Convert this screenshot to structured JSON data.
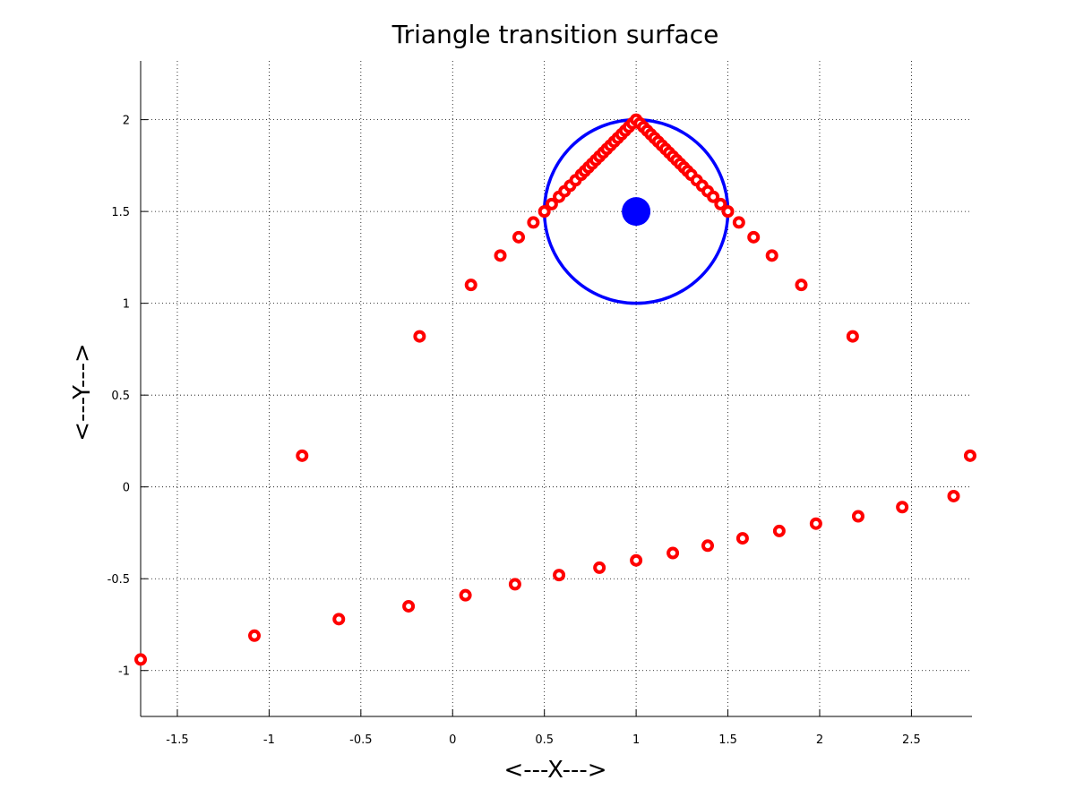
{
  "chart_data": {
    "type": "scatter",
    "title": "Triangle transition surface",
    "xlabel": "<---X--->",
    "ylabel": "<---Y--->",
    "xlim": [
      -1.7,
      2.83
    ],
    "ylim": [
      -1.25,
      2.32
    ],
    "xticks": [
      -1.5,
      -1,
      -0.5,
      0,
      0.5,
      1,
      1.5,
      2,
      2.5
    ],
    "xtick_labels": [
      "-1.5",
      "-1",
      "-0.5",
      "0",
      "0.5",
      "1",
      "1.5",
      "2",
      "2.5"
    ],
    "yticks": [
      -1,
      -0.5,
      0,
      0.5,
      1,
      1.5,
      2
    ],
    "ytick_labels": [
      "-1",
      "-0.5",
      "0",
      "0.5",
      "1",
      "1.5",
      "2"
    ],
    "grid": true,
    "colors": {
      "points": "#ff0000",
      "circle": "#0000ff",
      "center": "#0000ff"
    },
    "circle": {
      "cx": 1.0,
      "cy": 1.5,
      "r": 0.5
    },
    "center_point": {
      "x": 1.0,
      "y": 1.5
    },
    "series": [
      {
        "marker": "ring",
        "x": [
          -1.7,
          -0.82,
          -0.18,
          0.1,
          0.26,
          0.36,
          0.44,
          0.5,
          0.54,
          0.58,
          0.61,
          0.64,
          0.67,
          0.7,
          0.72,
          0.74,
          0.76,
          0.78,
          0.8,
          0.82,
          0.84,
          0.86,
          0.88,
          0.9,
          0.92,
          0.94,
          0.96,
          0.98,
          1.0,
          1.02,
          1.04,
          1.06,
          1.08,
          1.1,
          1.12,
          1.14,
          1.16,
          1.18,
          1.2,
          1.22,
          1.24,
          1.26,
          1.28,
          1.3,
          1.33,
          1.36,
          1.39,
          1.42,
          1.46,
          1.5,
          1.56,
          1.64,
          1.74,
          1.9,
          2.18,
          2.82
        ],
        "y": [
          -0.94,
          0.17,
          0.82,
          1.1,
          1.26,
          1.36,
          1.44,
          1.5,
          1.54,
          1.58,
          1.61,
          1.64,
          1.67,
          1.7,
          1.72,
          1.74,
          1.76,
          1.78,
          1.8,
          1.82,
          1.84,
          1.86,
          1.88,
          1.9,
          1.92,
          1.94,
          1.96,
          1.98,
          2.0,
          1.98,
          1.96,
          1.94,
          1.92,
          1.9,
          1.88,
          1.86,
          1.84,
          1.82,
          1.8,
          1.78,
          1.76,
          1.74,
          1.72,
          1.7,
          1.67,
          1.64,
          1.61,
          1.58,
          1.54,
          1.5,
          1.44,
          1.36,
          1.26,
          1.1,
          0.82,
          0.17
        ]
      },
      {
        "marker": "ring",
        "x": [
          -1.08,
          -0.62,
          -0.24,
          0.07,
          0.34,
          0.58,
          0.8,
          1.0,
          1.2,
          1.39,
          1.58,
          1.78,
          1.98,
          2.21,
          2.45,
          2.73
        ],
        "y": [
          -0.81,
          -0.72,
          -0.65,
          -0.59,
          -0.53,
          -0.48,
          -0.44,
          -0.4,
          -0.36,
          -0.32,
          -0.28,
          -0.24,
          -0.2,
          -0.16,
          -0.11,
          -0.05
        ]
      }
    ]
  }
}
